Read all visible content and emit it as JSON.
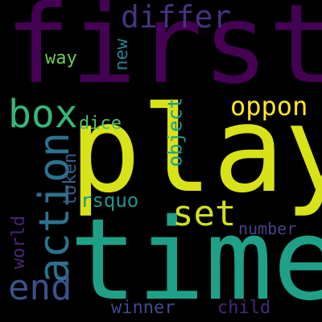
{
  "words": {
    "first": {
      "text": "first",
      "color": "#440154"
    },
    "play": {
      "text": "play",
      "color": "#d8e219"
    },
    "time": {
      "text": "time",
      "color": "#1fa187"
    },
    "differ": {
      "text": "differ",
      "color": "#46327e"
    },
    "box": {
      "text": "box",
      "color": "#35b779"
    },
    "oppon": {
      "text": "oppon",
      "color": "#fde725"
    },
    "action": {
      "text": "action",
      "color": "#2c728e"
    },
    "set": {
      "text": "set",
      "color": "#d0e11c"
    },
    "end": {
      "text": "end",
      "color": "#3b528b"
    },
    "way": {
      "text": "way",
      "color": "#6ece58"
    },
    "new": {
      "text": "new",
      "color": "#27808e"
    },
    "dice": {
      "text": "dice",
      "color": "#4ac16d"
    },
    "object": {
      "text": "object",
      "color": "#1f9a8a"
    },
    "token": {
      "text": "token",
      "color": "#365c8d"
    },
    "rsquo": {
      "text": "rsquo",
      "color": "#1f958b"
    },
    "number": {
      "text": "number",
      "color": "#414487"
    },
    "world": {
      "text": "world",
      "color": "#482475"
    },
    "winner": {
      "text": "winner",
      "color": "#3e4989"
    },
    "child": {
      "text": "child",
      "color": "#482878"
    }
  }
}
